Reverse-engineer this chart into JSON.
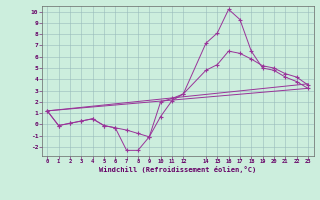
{
  "background_color": "#cceedd",
  "grid_color": "#99bbbb",
  "line_color": "#993399",
  "xlim": [
    -0.5,
    23.5
  ],
  "ylim": [
    -2.8,
    10.5
  ],
  "yticks": [
    -2,
    -1,
    0,
    1,
    2,
    3,
    4,
    5,
    6,
    7,
    8,
    9,
    10
  ],
  "xticks": [
    0,
    1,
    2,
    3,
    4,
    5,
    6,
    7,
    8,
    9,
    10,
    11,
    12,
    14,
    15,
    16,
    17,
    18,
    19,
    20,
    21,
    22,
    23
  ],
  "xlabel": "Windchill (Refroidissement éolien,°C)",
  "series": [
    {
      "x": [
        0,
        1,
        2,
        3,
        4,
        5,
        6,
        7,
        8,
        9,
        10,
        11,
        12,
        14,
        15,
        16,
        17,
        18,
        19,
        20,
        21,
        22,
        23
      ],
      "y": [
        1.2,
        -0.1,
        0.1,
        0.3,
        0.5,
        -0.1,
        -0.3,
        -2.3,
        -2.3,
        -1.1,
        0.7,
        2.1,
        2.7,
        7.2,
        8.1,
        10.2,
        9.3,
        6.5,
        5.0,
        4.8,
        4.2,
        3.8,
        3.2
      ],
      "marker": true
    },
    {
      "x": [
        0,
        1,
        2,
        3,
        4,
        5,
        6,
        7,
        8,
        9,
        10,
        11,
        12,
        14,
        15,
        16,
        17,
        18,
        19,
        20,
        21,
        22,
        23
      ],
      "y": [
        1.2,
        -0.1,
        0.1,
        0.3,
        0.5,
        -0.1,
        -0.3,
        -0.5,
        -0.8,
        -1.1,
        2.0,
        2.3,
        2.7,
        4.8,
        5.3,
        6.5,
        6.3,
        5.8,
        5.2,
        5.0,
        4.5,
        4.2,
        3.5
      ],
      "marker": true
    },
    {
      "x": [
        0,
        23
      ],
      "y": [
        1.2,
        3.2
      ],
      "marker": false
    },
    {
      "x": [
        0,
        23
      ],
      "y": [
        1.2,
        3.6
      ],
      "marker": false
    }
  ]
}
